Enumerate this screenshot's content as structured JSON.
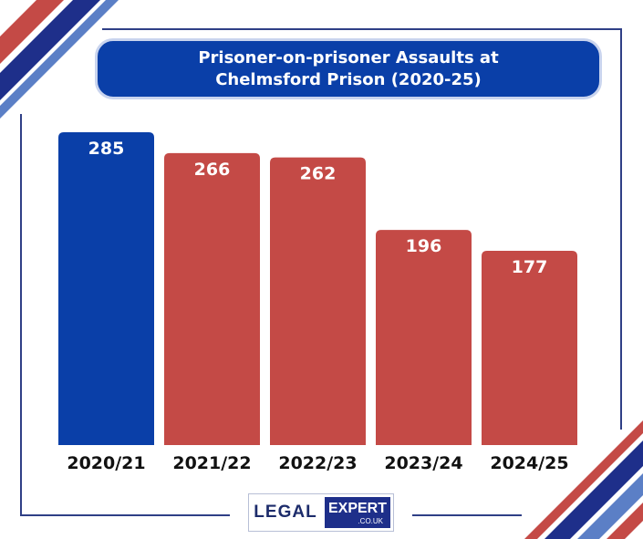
{
  "title": {
    "line1": "Prisoner-on-prisoner Assaults at",
    "line2": "Chelmsford Prison (2020-25)"
  },
  "logo": {
    "left": "LEGAL",
    "right": "EXPERT",
    "sub": ".CO.UK"
  },
  "colors": {
    "highlight": "#0a3fa8",
    "bar": "#c44a46",
    "title_bg": "#0a3fa8",
    "frame": "#2f3f86"
  },
  "chart_data": {
    "type": "bar",
    "title": "Prisoner-on-prisoner Assaults at Chelmsford Prison (2020-25)",
    "categories": [
      "2020/21",
      "2021/22",
      "2022/23",
      "2023/24",
      "2024/25"
    ],
    "values": [
      285,
      266,
      262,
      196,
      177
    ],
    "highlight_index": 0,
    "xlabel": "",
    "ylabel": "",
    "grid": false,
    "legend": "none"
  }
}
